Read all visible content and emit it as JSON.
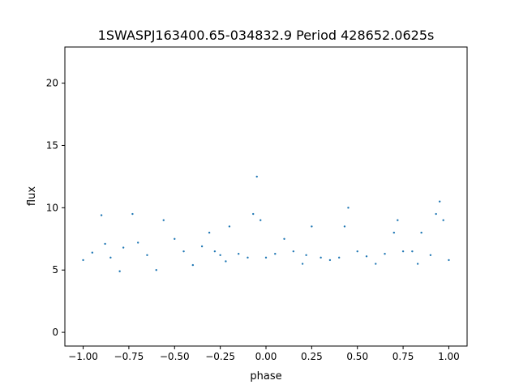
{
  "chart_data": {
    "type": "scatter",
    "title": "1SWASPJ163400.65-034832.9 Period 428652.0625s",
    "xlabel": "phase",
    "ylabel": "flux",
    "xlim": [
      -1.1,
      1.1
    ],
    "ylim": [
      -1.1,
      22.9
    ],
    "x_ticks": [
      -1.0,
      -0.75,
      -0.5,
      -0.25,
      0.0,
      0.25,
      0.5,
      0.75,
      1.0
    ],
    "x_tick_labels": [
      "−1.00",
      "−0.75",
      "−0.50",
      "−0.25",
      "0.00",
      "0.25",
      "0.50",
      "0.75",
      "1.00"
    ],
    "y_ticks": [
      0,
      5,
      10,
      15,
      20
    ],
    "y_tick_labels": [
      "0",
      "5",
      "10",
      "15",
      "20"
    ],
    "grid": false,
    "legend": "none",
    "point_color": "#1f77b4",
    "series": [
      {
        "x": [
          -1.0,
          -0.95,
          -0.9,
          -0.88,
          -0.85,
          -0.8,
          -0.78,
          -0.73,
          -0.7,
          -0.65,
          -0.6,
          -0.56,
          -0.5,
          -0.45,
          -0.4,
          -0.35,
          -0.31,
          -0.28,
          -0.25,
          -0.22,
          -0.2,
          -0.15,
          -0.1,
          -0.07,
          -0.05,
          -0.03,
          0.0,
          0.05,
          0.1,
          0.15,
          0.2,
          0.22,
          0.25,
          0.3,
          0.35,
          0.4,
          0.43,
          0.45,
          0.5,
          0.55,
          0.6,
          0.65,
          0.7,
          0.72,
          0.75,
          0.8,
          0.83,
          0.85,
          0.9,
          0.93,
          0.95,
          0.97,
          1.0
        ],
        "y": [
          5.8,
          6.4,
          9.4,
          7.1,
          6.0,
          4.9,
          6.8,
          9.5,
          7.2,
          6.2,
          5.0,
          9.0,
          7.5,
          6.5,
          5.4,
          6.9,
          8.0,
          6.5,
          6.2,
          5.7,
          8.5,
          6.3,
          6.0,
          9.5,
          12.5,
          9.0,
          6.0,
          6.3,
          7.5,
          6.5,
          5.5,
          6.2,
          8.5,
          6.0,
          5.8,
          6.0,
          8.5,
          10.0,
          6.5,
          6.1,
          5.5,
          6.3,
          8.0,
          9.0,
          6.5,
          6.5,
          5.5,
          8.0,
          6.2,
          9.5,
          10.5,
          9.0,
          5.8
        ]
      }
    ]
  }
}
